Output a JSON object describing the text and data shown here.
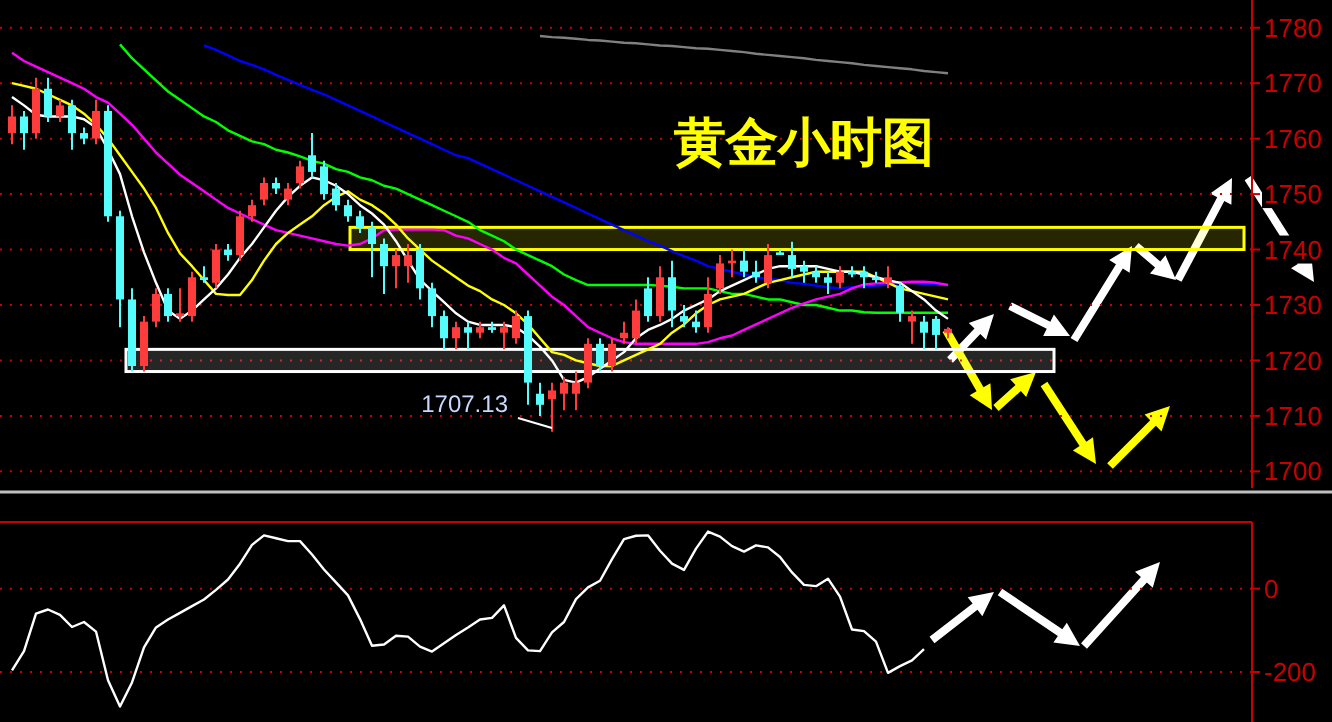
{
  "chart_data": [
    {
      "type": "candlestick",
      "title": "黄金小时图",
      "tick_labels": "y",
      "grid": "y",
      "ylim": [
        1697,
        1785
      ],
      "yticks": [
        1700,
        1710,
        1720,
        1730,
        1740,
        1750,
        1760,
        1770,
        1780
      ],
      "categories": [
        null,
        null,
        null,
        null,
        null,
        null,
        null,
        null,
        null,
        null,
        null,
        null,
        null,
        null,
        null,
        null,
        null,
        null,
        null,
        null,
        null,
        null,
        null,
        null,
        null,
        null,
        null,
        null,
        null,
        null,
        null,
        null,
        null,
        null,
        null,
        null,
        null,
        null,
        null,
        null,
        null,
        null,
        null,
        null,
        null,
        null,
        null,
        null,
        null,
        null,
        null,
        null,
        null,
        null,
        null,
        null,
        null,
        null,
        null,
        null,
        null,
        null,
        null,
        null,
        null,
        null,
        null,
        null,
        null,
        null,
        null,
        null,
        null,
        null,
        null,
        null,
        null,
        null,
        null
      ],
      "ohlc": [
        [
          1761,
          1766,
          1759,
          1764
        ],
        [
          1764,
          1765,
          1758,
          1761
        ],
        [
          1761,
          1771,
          1760,
          1769
        ],
        [
          1769,
          1771,
          1763,
          1764
        ],
        [
          1764,
          1767,
          1763,
          1766
        ],
        [
          1766,
          1767,
          1758,
          1761
        ],
        [
          1761,
          1762,
          1759,
          1760
        ],
        [
          1760,
          1767,
          1759,
          1765
        ],
        [
          1765,
          1766,
          1745,
          1746
        ],
        [
          1746,
          1747,
          1726,
          1731
        ],
        [
          1731,
          1733,
          1718,
          1719
        ],
        [
          1719,
          1728,
          1718,
          1727
        ],
        [
          1727,
          1733,
          1726,
          1732
        ],
        [
          1732,
          1733,
          1727,
          1728
        ],
        [
          1728,
          1733,
          1727,
          1728.5
        ],
        [
          1728,
          1736,
          1727,
          1735
        ],
        [
          1735,
          1737,
          1734,
          1734.5
        ],
        [
          1734,
          1741,
          1733,
          1740
        ],
        [
          1740,
          1741,
          1738,
          1739
        ],
        [
          1739,
          1747,
          1738,
          1746
        ],
        [
          1746,
          1749,
          1745,
          1748
        ],
        [
          1749,
          1753,
          1748,
          1752
        ],
        [
          1752,
          1753,
          1750,
          1751
        ],
        [
          1749,
          1752,
          1748,
          1751
        ],
        [
          1752,
          1756,
          1751,
          1755
        ],
        [
          1757,
          1761,
          1753,
          1754
        ],
        [
          1755,
          1756,
          1749,
          1750
        ],
        [
          1751,
          1752,
          1747,
          1748
        ],
        [
          1748,
          1749,
          1745,
          1746
        ],
        [
          1746,
          1747,
          1743,
          1744
        ],
        [
          1744,
          1745,
          1735,
          1741
        ],
        [
          1741,
          1742,
          1732,
          1737
        ],
        [
          1737,
          1740,
          1733,
          1739
        ],
        [
          1737,
          1741,
          1734,
          1739
        ],
        [
          1740,
          1741,
          1731,
          1733
        ],
        [
          1733,
          1734,
          1726,
          1728
        ],
        [
          1728,
          1729,
          1722,
          1724
        ],
        [
          1724,
          1727,
          1722,
          1726
        ],
        [
          1726,
          1727,
          1722,
          1725
        ],
        [
          1725,
          1727,
          1724,
          1726
        ],
        [
          1726,
          1727,
          1725,
          1725.5
        ],
        [
          1725,
          1727,
          1722,
          1726
        ],
        [
          1724,
          1729,
          1723,
          1728
        ],
        [
          1728,
          1729,
          1712,
          1716
        ],
        [
          1714,
          1716,
          1710,
          1712
        ],
        [
          1713,
          1716,
          1707.13,
          1714.6
        ],
        [
          1714,
          1717,
          1711,
          1716
        ],
        [
          1714,
          1718,
          1711,
          1716
        ],
        [
          1716,
          1724,
          1715,
          1723
        ],
        [
          1723,
          1724,
          1718,
          1719
        ],
        [
          1719,
          1724,
          1718,
          1723
        ],
        [
          1724,
          1727,
          1723,
          1725
        ],
        [
          1724,
          1731,
          1723,
          1729
        ],
        [
          1733,
          1735,
          1727,
          1728
        ],
        [
          1728,
          1737,
          1727,
          1735
        ],
        [
          1735,
          1738,
          1726,
          1729
        ],
        [
          1728,
          1730,
          1726,
          1727
        ],
        [
          1727,
          1729,
          1725,
          1726
        ],
        [
          1726,
          1735,
          1725,
          1732
        ],
        [
          1733,
          1739,
          1732,
          1737.5
        ],
        [
          1737.5,
          1740,
          1735,
          1738
        ],
        [
          1738,
          1740,
          1735,
          1736
        ],
        [
          1736,
          1738,
          1734,
          1735
        ],
        [
          1734,
          1741,
          1733,
          1739
        ],
        [
          1739.5,
          1740,
          1739,
          1739
        ],
        [
          1739,
          1741.4,
          1735,
          1736.5
        ],
        [
          1737,
          1738,
          1734,
          1736
        ],
        [
          1736,
          1737,
          1734,
          1735
        ],
        [
          1735,
          1736,
          1732,
          1734
        ],
        [
          1734,
          1737,
          1733,
          1736
        ],
        [
          1736,
          1737,
          1735,
          1735.5
        ],
        [
          1736,
          1737,
          1733,
          1735
        ],
        [
          1735,
          1736,
          1734,
          1734.5
        ],
        [
          1734,
          1737,
          1733,
          1735
        ],
        [
          1733.5,
          1734,
          1727,
          1728.6
        ],
        [
          1727,
          1729,
          1723,
          1728
        ],
        [
          1727,
          1728,
          1722,
          1725
        ],
        [
          1727.5,
          1728,
          1722,
          1724.6
        ],
        [
          1725,
          1726,
          1724,
          1725.7
        ]
      ],
      "colors": [
        "#ff3c3c",
        "#54fcfc",
        "#ff3c3c",
        "#54fcfc",
        "#ff3c3c",
        "#54fcfc",
        "#54fcfc",
        "#ff3c3c",
        "#54fcfc",
        "#54fcfc",
        "#54fcfc",
        "#ff3c3c",
        "#ff3c3c",
        "#54fcfc",
        "#ff3c3c",
        "#ff3c3c",
        "#54fcfc",
        "#ff3c3c",
        "#54fcfc",
        "#ff3c3c",
        "#ff3c3c",
        "#ff3c3c",
        "#54fcfc",
        "#ff3c3c",
        "#ff3c3c",
        "#54fcfc",
        "#54fcfc",
        "#54fcfc",
        "#54fcfc",
        "#54fcfc",
        "#54fcfc",
        "#54fcfc",
        "#ff3c3c",
        "#ff3c3c",
        "#54fcfc",
        "#54fcfc",
        "#54fcfc",
        "#ff3c3c",
        "#54fcfc",
        "#ff3c3c",
        "#54fcfc",
        "#ff3c3c",
        "#ff3c3c",
        "#54fcfc",
        "#54fcfc",
        "#ff3c3c",
        "#ff3c3c",
        "#ff3c3c",
        "#ff3c3c",
        "#54fcfc",
        "#ff3c3c",
        "#ff3c3c",
        "#ff3c3c",
        "#54fcfc",
        "#ff3c3c",
        "#54fcfc",
        "#54fcfc",
        "#54fcfc",
        "#ff3c3c",
        "#ff3c3c",
        "#ff3c3c",
        "#54fcfc",
        "#54fcfc",
        "#ff3c3c",
        "#54fcfc",
        "#54fcfc",
        "#54fcfc",
        "#54fcfc",
        "#54fcfc",
        "#ff3c3c",
        "#54fcfc",
        "#54fcfc",
        "#54fcfc",
        "#ff3c3c",
        "#54fcfc",
        "#ff3c3c",
        "#54fcfc",
        "#54fcfc",
        "#ff3c3c"
      ],
      "series": [
        {
          "type": "line",
          "color": "#808080",
          "values": [
            null,
            null,
            null,
            null,
            null,
            null,
            null,
            null,
            null,
            null,
            null,
            null,
            null,
            null,
            null,
            null,
            null,
            null,
            null,
            null,
            null,
            null,
            null,
            null,
            null,
            null,
            null,
            null,
            null,
            null,
            null,
            null,
            null,
            null,
            null,
            null,
            null,
            null,
            null,
            null,
            null,
            null,
            null,
            null,
            1778.5,
            1778.3,
            1778.2,
            1778,
            1777.8,
            1777.7,
            1777.5,
            1777.3,
            1777.2,
            1777,
            1776.8,
            1776.7,
            1776.5,
            1776.3,
            1776.2,
            1776,
            1775.8,
            1775.6,
            1775.3,
            1775.1,
            1774.9,
            1774.7,
            1774.5,
            1774.2,
            1774,
            1773.8,
            1773.6,
            1773.3,
            1773.1,
            1772.9,
            1772.7,
            1772.5,
            1772.2,
            1772,
            1771.8
          ]
        },
        {
          "type": "line",
          "color": "#0000ff",
          "values": [
            null,
            null,
            null,
            null,
            null,
            null,
            null,
            null,
            null,
            null,
            null,
            null,
            null,
            null,
            null,
            null,
            1776.8,
            1776,
            1775,
            1774,
            1773.3,
            1772.5,
            1771.5,
            1770.6,
            1769.7,
            1768.8,
            1768,
            1767,
            1766,
            1765,
            1764,
            1763,
            1762,
            1761,
            1760,
            1759,
            1758,
            1757,
            1756.5,
            1755.5,
            1754.5,
            1753.5,
            1752.5,
            1751.5,
            1750.5,
            1749.5,
            1748.5,
            1747.5,
            1746.5,
            1745.5,
            1744.5,
            1743.5,
            1742.5,
            1741.5,
            1740.7,
            1739.7,
            1738.8,
            1738,
            1737,
            1736.5,
            1736,
            1735.5,
            1735,
            1734.7,
            1734.5,
            1734,
            1733.8,
            1733.5,
            1733.2,
            1733,
            1733.2,
            1733.4,
            1733.5,
            1733.7,
            1734,
            1734,
            1733.8,
            1733.7,
            1733.6
          ]
        },
        {
          "type": "line",
          "color": "#00ff00",
          "values": [
            null,
            null,
            null,
            null,
            null,
            null,
            null,
            null,
            null,
            1777,
            1774.5,
            1772.5,
            1770.5,
            1768.5,
            1767,
            1765.5,
            1764,
            1763,
            1761.5,
            1760.5,
            1759.5,
            1759,
            1758,
            1757.5,
            1756.8,
            1756,
            1755.5,
            1754.5,
            1754,
            1753,
            1752.5,
            1751.5,
            1751,
            1750,
            1749,
            1748,
            1747,
            1746,
            1745,
            1743.5,
            1742.5,
            1741.5,
            1740,
            1739,
            1738,
            1737,
            1735.5,
            1734.5,
            1733.6,
            1733.6,
            1733.6,
            1733.6,
            1733.6,
            1733.6,
            1733.5,
            1733.3,
            1733,
            1733,
            1733,
            1732.5,
            1732,
            1732,
            1731.5,
            1731,
            1731,
            1730.5,
            1730,
            1730,
            1729.5,
            1729,
            1729,
            1728.7,
            1728.6,
            1728.6,
            1728.6,
            1728.6,
            1728.6,
            1728.6,
            1728.6
          ]
        },
        {
          "type": "line",
          "color": "#ff00ff",
          "values": [
            1775.5,
            1774,
            1773,
            1772,
            1771,
            1770,
            1769,
            1767.5,
            1766.5,
            1764.5,
            1762.5,
            1760,
            1757.5,
            1755.5,
            1753.5,
            1752,
            1750.5,
            1749,
            1747.5,
            1746.5,
            1745.5,
            1744.5,
            1743.5,
            1743,
            1742.5,
            1742,
            1741.5,
            1741,
            1740.7,
            1741,
            1742,
            1743.5,
            1743.6,
            1743.6,
            1743.6,
            1743.6,
            1743.5,
            1742.5,
            1742,
            1741,
            1740,
            1738.5,
            1737.5,
            1735.5,
            1733.5,
            1731.5,
            1730,
            1728,
            1726,
            1725,
            1724,
            1723.3,
            1723,
            1723,
            1723,
            1723,
            1723,
            1723,
            1723.3,
            1724,
            1724.5,
            1725.5,
            1726.5,
            1727.5,
            1728.5,
            1729.5,
            1730.3,
            1731,
            1731.5,
            1732,
            1733,
            1733.7,
            1733.9,
            1734,
            1734.1,
            1734.2,
            1734.2,
            1734,
            1733.6
          ]
        },
        {
          "type": "line",
          "color": "#ffff00",
          "values": [
            1770,
            1769.5,
            1769,
            1768,
            1767,
            1766,
            1764.5,
            1762.5,
            1760,
            1757,
            1754,
            1751,
            1747.5,
            1743,
            1739.3,
            1737,
            1734.5,
            1732,
            1731.8,
            1731.8,
            1734.5,
            1738,
            1741,
            1743,
            1744.5,
            1746,
            1748,
            1749.5,
            1750.5,
            1749,
            1748,
            1746.5,
            1744.5,
            1742,
            1740,
            1738,
            1736.5,
            1735,
            1733.5,
            1732.5,
            1731,
            1730,
            1728.5,
            1726.5,
            1724,
            1721.5,
            1721,
            1720,
            1719.5,
            1719,
            1719,
            1720,
            1721,
            1722,
            1723,
            1725,
            1726.5,
            1728.5,
            1730,
            1731,
            1731.5,
            1732,
            1733,
            1734,
            1734.5,
            1735,
            1735.5,
            1736,
            1736,
            1736,
            1736,
            1736,
            1735,
            1734,
            1733,
            1732.5,
            1732,
            1731.5,
            1731
          ]
        },
        {
          "type": "line",
          "color": "#ffffff",
          "values": [
            1767.5,
            1766,
            1764.3,
            1764,
            1764,
            1764,
            1763.5,
            1762,
            1758,
            1753.6,
            1746,
            1739.5,
            1734,
            1729,
            1727.5,
            1729,
            1731,
            1733,
            1735.5,
            1738.5,
            1741,
            1744,
            1747,
            1749.5,
            1751.5,
            1753,
            1752.5,
            1751.5,
            1750,
            1748,
            1746.5,
            1744.5,
            1741.5,
            1738,
            1734.6,
            1732.5,
            1730.5,
            1728.5,
            1727,
            1726.4,
            1726.4,
            1726.4,
            1726,
            1724.5,
            1722.5,
            1720,
            1716.5,
            1716,
            1717,
            1718.5,
            1720,
            1721.5,
            1724,
            1725.5,
            1726.4,
            1727.5,
            1729,
            1730,
            1731,
            1732.5,
            1733.5,
            1734.5,
            1735.5,
            1736.5,
            1737,
            1737,
            1737,
            1737,
            1736.5,
            1736,
            1736,
            1735.5,
            1735,
            1734.5,
            1734,
            1732.5,
            1731,
            1729,
            1727.5
          ]
        }
      ],
      "bands": [
        {
          "axis": "y",
          "from": 1740,
          "to": 1744,
          "color": "#ffff00"
        },
        {
          "axis": "y",
          "from": 1718,
          "to": 1722,
          "color": "#ffffff"
        }
      ],
      "annotations": [
        "1707.13"
      ]
    },
    {
      "type": "line",
      "tick_labels": "y",
      "grid": "y",
      "ylim": [
        -320,
        160
      ],
      "yticks": [
        0,
        -200
      ],
      "categories": [
        null,
        null,
        null,
        null,
        null,
        null,
        null,
        null,
        null,
        null,
        null,
        null,
        null,
        null,
        null,
        null,
        null,
        null,
        null,
        null,
        null,
        null,
        null,
        null,
        null,
        null,
        null,
        null,
        null,
        null,
        null,
        null,
        null,
        null,
        null,
        null,
        null,
        null,
        null,
        null,
        null,
        null,
        null,
        null,
        null,
        null,
        null,
        null,
        null,
        null,
        null,
        null,
        null,
        null,
        null,
        null,
        null,
        null,
        null,
        null,
        null,
        null,
        null,
        null,
        null,
        null,
        null,
        null,
        null,
        null,
        null,
        null,
        null,
        null,
        null,
        null,
        null
      ],
      "series": [
        {
          "color": "#ffffff",
          "values": [
            -196,
            -150,
            -60,
            -50,
            -63,
            -92,
            -80,
            -103,
            -220,
            -283,
            -225,
            -141,
            -93,
            -74,
            -58,
            -42,
            -26,
            -3,
            22,
            60,
            105,
            128,
            121,
            114,
            114,
            82,
            46,
            15,
            -16,
            -73,
            -137,
            -134,
            -113,
            -115,
            -139,
            -151,
            -131,
            -111,
            -93,
            -74,
            -70,
            -40,
            -118,
            -148,
            -150,
            -105,
            -80,
            -25,
            3,
            19,
            71,
            119,
            127,
            128,
            91,
            60,
            45,
            96,
            137,
            125,
            102,
            89,
            104,
            99,
            76,
            39,
            9,
            6,
            24,
            -19,
            -98,
            -102,
            -127,
            -202,
            -186,
            -172,
            -145
          ]
        }
      ]
    }
  ]
}
